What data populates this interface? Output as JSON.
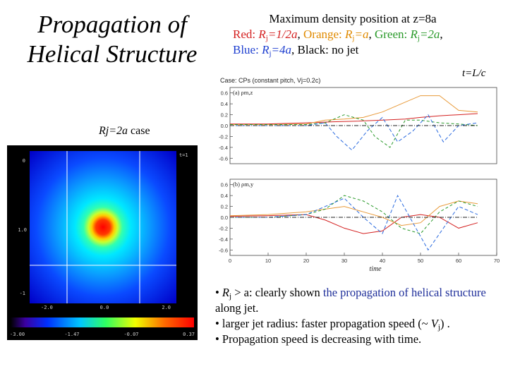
{
  "title": {
    "line1": "Propagation of",
    "line2": "Helical Structure"
  },
  "header": {
    "line1": "Maximum density position at z=8a",
    "red": "Red: ",
    "red_r": "R",
    "red_sub": "j",
    "red_rest": "=1/2a",
    "orange": "Orange: ",
    "orange_r": "R",
    "orange_sub": "j",
    "orange_rest": "=a",
    "green": "Green: ",
    "green_r": "R",
    "green_sub": "j",
    "green_rest": "=2a",
    "blue": "Blue: ",
    "blue_r": "R",
    "blue_sub": "j",
    "blue_rest": "=4a",
    "black": "Black: no jet"
  },
  "time_label": "t=L/c",
  "case_label": {
    "rj": "Rj=2a",
    "rest": " case"
  },
  "chart_data": {
    "type": "line",
    "case_caption": "Case: CPs (constant pitch, Vj=0.2c)",
    "xlabel": "time",
    "x_ticks": [
      "0",
      "10",
      "20",
      "30",
      "40",
      "50",
      "60",
      "70"
    ],
    "xlim": [
      0,
      70
    ],
    "panels": [
      {
        "label": "(a) ρm,z",
        "y_ticks": [
          "0.6",
          "0.4",
          "0.2",
          "0.0",
          "-0.2",
          "-0.4",
          "-0.6"
        ],
        "ylim": [
          -0.7,
          0.7
        ],
        "series": [
          {
            "name": "Red Rj=1/2a",
            "color": "#d42020",
            "dash": "",
            "x": [
              0,
              10,
              20,
              27,
              33,
              40,
              46,
              50,
              55,
              60,
              65
            ],
            "y": [
              0.03,
              0.03,
              0.05,
              0.07,
              0.08,
              0.1,
              0.12,
              0.15,
              0.18,
              0.2,
              0.22
            ]
          },
          {
            "name": "Orange Rj=a",
            "color": "#e89a3a",
            "dash": "",
            "x": [
              0,
              10,
              20,
              25,
              30,
              35,
              40,
              45,
              50,
              55,
              60,
              65
            ],
            "y": [
              0.02,
              0.02,
              0.03,
              0.1,
              0.12,
              0.15,
              0.25,
              0.4,
              0.55,
              0.55,
              0.28,
              0.25
            ]
          },
          {
            "name": "Green Rj=2a",
            "color": "#2a9a2a",
            "dash": "4,3",
            "x": [
              0,
              10,
              20,
              25,
              30,
              35,
              38,
              42,
              46,
              50,
              55,
              60,
              65
            ],
            "y": [
              0.02,
              0.02,
              0.02,
              0.05,
              0.2,
              0.1,
              -0.2,
              -0.4,
              0.1,
              0.1,
              0.05,
              0.03,
              0.0
            ]
          },
          {
            "name": "Blue Rj=4a",
            "color": "#2a6adf",
            "dash": "5,3",
            "x": [
              0,
              10,
              20,
              25,
              28,
              32,
              36,
              40,
              44,
              48,
              52,
              56,
              60,
              65
            ],
            "y": [
              0.0,
              0.0,
              0.0,
              0.05,
              -0.2,
              -0.45,
              -0.1,
              0.15,
              -0.3,
              -0.1,
              0.2,
              -0.3,
              0.0,
              0.05
            ]
          },
          {
            "name": "Black no jet",
            "color": "#222",
            "dash": "6,2,1,2",
            "x": [
              0,
              10,
              20,
              30,
              40,
              50,
              60,
              65
            ],
            "y": [
              0.0,
              0.0,
              0.0,
              0.0,
              0.0,
              0.0,
              0.0,
              0.0
            ]
          }
        ]
      },
      {
        "label": "(b) ρm,y",
        "y_ticks": [
          "0.6",
          "0.4",
          "0.2",
          "0.0",
          "-0.2",
          "-0.4",
          "-0.6"
        ],
        "ylim": [
          -0.7,
          0.7
        ],
        "series": [
          {
            "name": "Red Rj=1/2a",
            "color": "#d42020",
            "dash": "",
            "x": [
              0,
              10,
              20,
              25,
              30,
              35,
              40,
              45,
              50,
              55,
              60,
              65
            ],
            "y": [
              0.02,
              0.03,
              0.05,
              -0.05,
              -0.2,
              -0.3,
              -0.25,
              0.0,
              0.05,
              0.0,
              -0.2,
              -0.1
            ]
          },
          {
            "name": "Orange Rj=a",
            "color": "#e89a3a",
            "dash": "",
            "x": [
              0,
              10,
              20,
              25,
              30,
              35,
              40,
              45,
              50,
              55,
              60,
              65
            ],
            "y": [
              0.03,
              0.05,
              0.1,
              0.15,
              0.2,
              0.1,
              0.0,
              -0.15,
              -0.1,
              0.2,
              0.3,
              0.25
            ]
          },
          {
            "name": "Green Rj=2a",
            "color": "#2a9a2a",
            "dash": "4,3",
            "x": [
              0,
              10,
              20,
              25,
              30,
              35,
              40,
              45,
              50,
              55,
              60,
              65
            ],
            "y": [
              0.0,
              0.0,
              0.05,
              0.15,
              0.4,
              0.3,
              0.1,
              -0.2,
              -0.3,
              0.1,
              0.3,
              0.2
            ]
          },
          {
            "name": "Blue Rj=4a",
            "color": "#2a6adf",
            "dash": "5,3",
            "x": [
              0,
              10,
              20,
              25,
              30,
              35,
              40,
              44,
              48,
              52,
              56,
              60,
              65
            ],
            "y": [
              0.0,
              0.0,
              0.05,
              0.2,
              0.35,
              0.0,
              -0.3,
              0.4,
              -0.1,
              -0.6,
              -0.2,
              0.2,
              0.05
            ]
          },
          {
            "name": "Black no jet",
            "color": "#222",
            "dash": "6,2,1,2",
            "x": [
              0,
              10,
              20,
              30,
              40,
              50,
              60,
              65
            ],
            "y": [
              0.0,
              0.0,
              0.0,
              0.0,
              0.0,
              0.0,
              0.0,
              0.0
            ]
          }
        ]
      }
    ]
  },
  "heatmap": {
    "corner_label": "t=1",
    "y_ticks": [
      "0",
      "1.0",
      "-1"
    ],
    "x_ticks": [
      "-2.0",
      "0.0",
      "2.0"
    ],
    "colorbar_ticks": [
      "-3.00",
      "-1.47",
      "-0.07",
      "0.37"
    ]
  },
  "bullets": {
    "b1_pre": "• ",
    "b1_r": "R",
    "b1_sub": "j",
    "b1_mid": " > a: clearly shown ",
    "b1_hl": "the propagation of helical structure",
    "b1_end": " along jet.",
    "b2_pre": "• larger jet radius: faster propagation speed (~ ",
    "b2_v": "V",
    "b2_sub": "j",
    "b2_end": ") .",
    "b3": "• Propagation speed is decreasing with time."
  }
}
